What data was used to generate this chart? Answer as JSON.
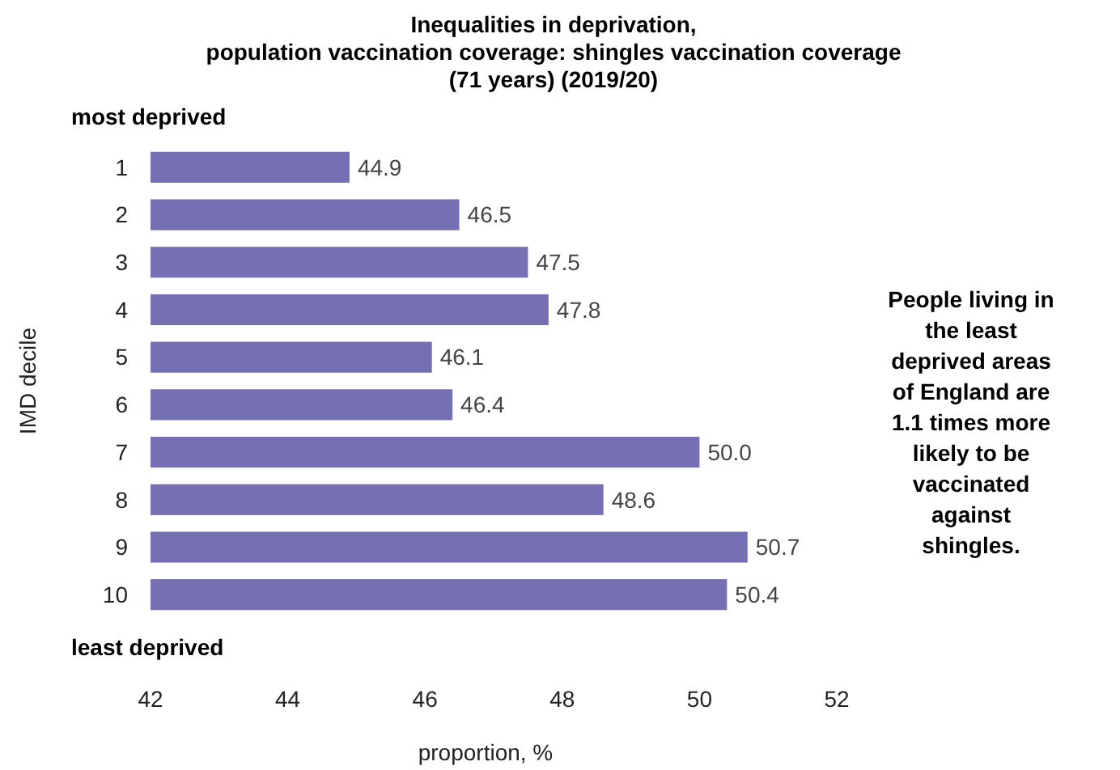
{
  "chart_data": {
    "type": "bar",
    "orientation": "horizontal",
    "title": "Inequalities in deprivation,\npopulation vaccination coverage: shingles vaccination coverage\n(71 years) (2019/20)",
    "ylabel": "IMD decile",
    "xlabel": "proportion, %",
    "categories": [
      "1",
      "2",
      "3",
      "4",
      "5",
      "6",
      "7",
      "8",
      "9",
      "10"
    ],
    "values": [
      44.9,
      46.5,
      47.5,
      47.8,
      46.1,
      46.4,
      50.0,
      48.6,
      50.7,
      50.4
    ],
    "value_labels": [
      "44.9",
      "46.5",
      "47.5",
      "47.8",
      "46.1",
      "46.4",
      "50.0",
      "48.6",
      "50.7",
      "50.4"
    ],
    "color": "#7570b3",
    "xlim": [
      42,
      52
    ],
    "xticks": [
      42,
      44,
      46,
      48,
      50,
      52
    ],
    "annotations": [
      "most deprived",
      "least deprived",
      "People living in the least deprived areas of England are 1.1 times more likely to be vaccinated against shingles."
    ]
  }
}
